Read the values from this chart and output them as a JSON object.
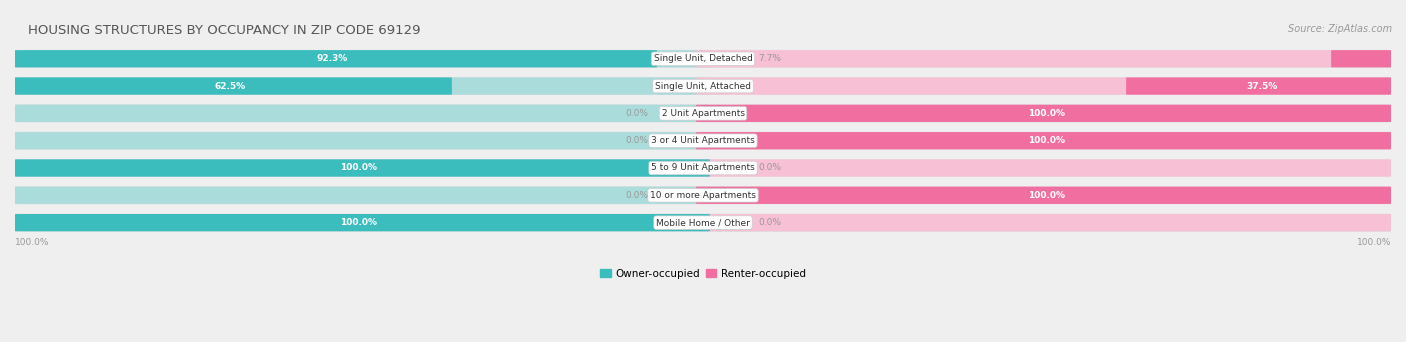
{
  "title": "HOUSING STRUCTURES BY OCCUPANCY IN ZIP CODE 69129",
  "source": "Source: ZipAtlas.com",
  "categories": [
    "Single Unit, Detached",
    "Single Unit, Attached",
    "2 Unit Apartments",
    "3 or 4 Unit Apartments",
    "5 to 9 Unit Apartments",
    "10 or more Apartments",
    "Mobile Home / Other"
  ],
  "owner_pct": [
    92.3,
    62.5,
    0.0,
    0.0,
    100.0,
    0.0,
    100.0
  ],
  "renter_pct": [
    7.7,
    37.5,
    100.0,
    100.0,
    0.0,
    100.0,
    0.0
  ],
  "owner_color": "#3bbdbd",
  "renter_color": "#f06fa0",
  "owner_color_light": "#aadcdc",
  "renter_color_light": "#f8c0d5",
  "bg_color": "#efefef",
  "row_bg_light": "#f7f7f7",
  "row_bg_dark": "#e8e8e8",
  "title_color": "#555555",
  "source_color": "#999999",
  "value_white": "#ffffff",
  "value_gray": "#999999",
  "legend_label_owner": "Owner-occupied",
  "legend_label_renter": "Renter-occupied",
  "figsize": [
    14.06,
    3.42
  ],
  "dpi": 100
}
